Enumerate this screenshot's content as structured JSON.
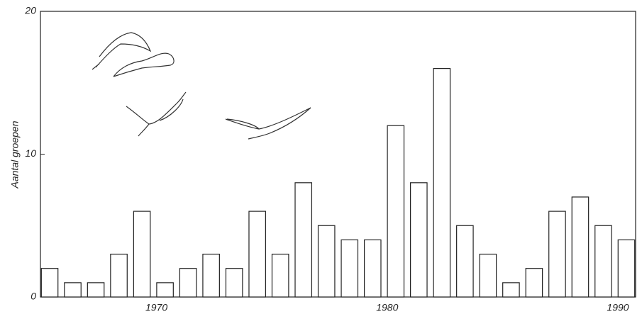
{
  "chart_data": {
    "type": "bar",
    "y_label": "Aantal groepen",
    "x": [
      1965,
      1966,
      1967,
      1968,
      1969,
      1970,
      1971,
      1972,
      1973,
      1974,
      1975,
      1976,
      1977,
      1978,
      1979,
      1980,
      1981,
      1982,
      1983,
      1984,
      1985,
      1986,
      1987,
      1988,
      1989,
      1990
    ],
    "values": [
      2,
      1,
      1,
      3,
      6,
      1,
      2,
      3,
      2,
      6,
      3,
      8,
      5,
      4,
      4,
      12,
      8,
      16,
      5,
      3,
      1,
      2,
      6,
      7,
      5,
      4
    ],
    "color": "#ffffff",
    "xlim": [
      1964.6,
      1990.4
    ],
    "xticks": [
      1970,
      1980,
      1990
    ],
    "ylim": [
      0,
      20
    ],
    "yticks": [
      0,
      10,
      20
    ],
    "grid": false
  }
}
